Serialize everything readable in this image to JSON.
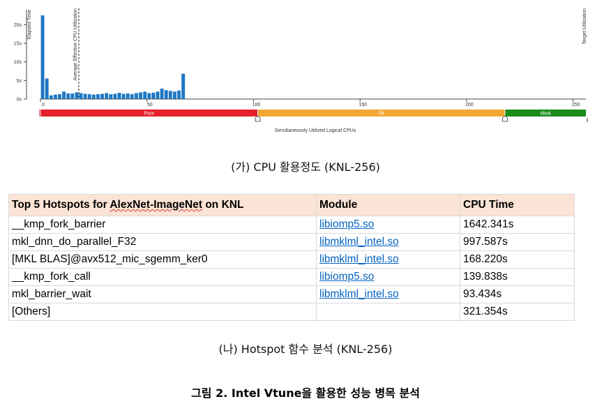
{
  "chart_data": {
    "type": "bar",
    "x": [
      0,
      2,
      4,
      6,
      8,
      10,
      12,
      14,
      16,
      18,
      20,
      22,
      24,
      26,
      28,
      30,
      32,
      34,
      36,
      38,
      40,
      42,
      44,
      46,
      48,
      50,
      52,
      54,
      56,
      58,
      60,
      62,
      64,
      66
    ],
    "values": [
      22.5,
      5.5,
      1.0,
      1.2,
      1.3,
      2.0,
      1.5,
      1.5,
      1.8,
      1.6,
      1.4,
      1.3,
      1.2,
      1.3,
      1.4,
      1.6,
      1.3,
      1.4,
      1.7,
      1.4,
      1.5,
      1.3,
      1.6,
      1.8,
      2.0,
      1.6,
      1.7,
      2.0,
      2.8,
      2.4,
      2.2,
      2.0,
      2.3,
      6.8
    ],
    "ylabel": "Elapsed Time",
    "xlabel": "Simultaneously Utilized Logical CPUs",
    "y_ticks": [
      "0s",
      "5s",
      "10s",
      "15s",
      "20s"
    ],
    "x_ticks": [
      "0",
      "50",
      "100",
      "150",
      "200",
      "250"
    ],
    "ylim": [
      0,
      24
    ],
    "xlim": [
      0,
      256
    ],
    "avg_line_label": "Average Effective CPU Utilization",
    "avg_line_x": 18,
    "target_label": "Target Utilization",
    "bands": [
      {
        "label": "Poor",
        "from": 0,
        "to": 102,
        "color": "#e5212b"
      },
      {
        "label": "Ok",
        "from": 102,
        "to": 218,
        "color": "#f4a633"
      },
      {
        "label": "Ideal",
        "from": 218,
        "to": 256,
        "color": "#1a8c1a"
      }
    ],
    "bar_color": "#1f77c4"
  },
  "captions": {
    "a": "(가) CPU 활용정도 (KNL-256)",
    "b": "(나) Hotspot 함수 분석 (KNL-256)",
    "figure": "그림 2. Intel Vtune을 활용한 성능 병목 분석"
  },
  "table": {
    "headers": [
      "Top 5 Hotspots for AlexNet-ImageNet on KNL",
      "Module",
      "CPU Time"
    ],
    "rows": [
      [
        "__kmp_fork_barrier",
        "libiomp5.so",
        "1642.341s"
      ],
      [
        "mkl_dnn_do_parallel_F32",
        "libmklml_intel.so",
        "997.587s"
      ],
      [
        "[MKL BLAS]@avx512_mic_sgemm_ker0",
        "libmklml_intel.so",
        "168.220s"
      ],
      [
        "__kmp_fork_call",
        "libiomp5.so",
        "139.838s"
      ],
      [
        "mkl_barrier_wait",
        "libmklml_intel.so",
        "93.434s"
      ],
      [
        "[Others]",
        "",
        "321.354s"
      ]
    ]
  }
}
